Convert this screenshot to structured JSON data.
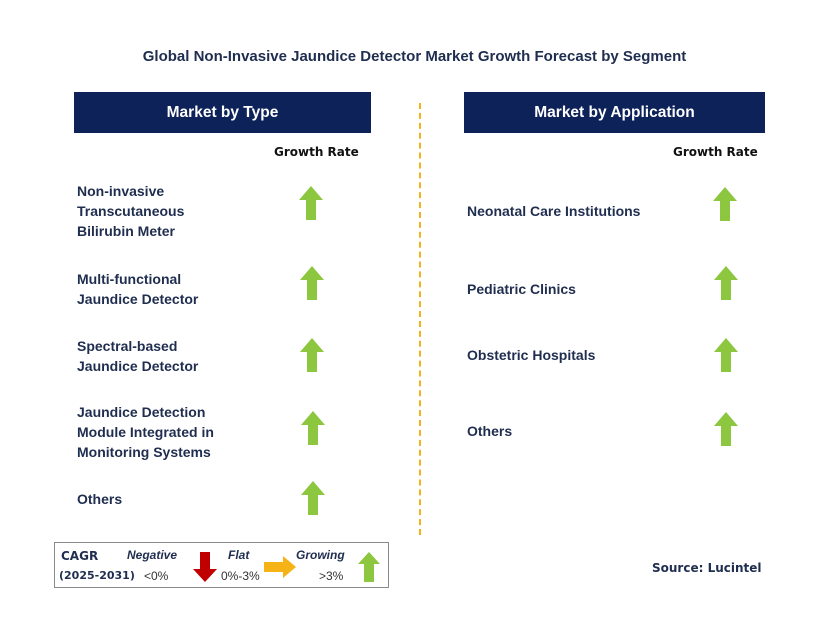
{
  "title": "Global Non-Invasive Jaundice Detector Market Growth Forecast by Segment",
  "left_panel": {
    "header": "Market by Type",
    "growth_label": "Growth Rate",
    "items": [
      {
        "lines": [
          "Non-invasive",
          "Transcutaneous",
          "Bilirubin Meter"
        ],
        "trend": "growing"
      },
      {
        "lines": [
          "Multi-functional",
          "Jaundice Detector"
        ],
        "trend": "growing"
      },
      {
        "lines": [
          "Spectral-based",
          "Jaundice Detector"
        ],
        "trend": "growing"
      },
      {
        "lines": [
          "Jaundice Detection",
          "Module Integrated in",
          "Monitoring Systems"
        ],
        "trend": "growing"
      },
      {
        "lines": [
          "Others"
        ],
        "trend": "growing"
      }
    ]
  },
  "right_panel": {
    "header": "Market by Application",
    "growth_label": "Growth Rate",
    "items": [
      {
        "lines": [
          "Neonatal Care Institutions"
        ],
        "trend": "growing"
      },
      {
        "lines": [
          "Pediatric Clinics"
        ],
        "trend": "growing"
      },
      {
        "lines": [
          "Obstetric Hospitals"
        ],
        "trend": "growing"
      },
      {
        "lines": [
          "Others"
        ],
        "trend": "growing"
      }
    ]
  },
  "legend": {
    "cagr": "CAGR",
    "period": "(2025-2031)",
    "negative": {
      "label": "Negative",
      "range": "<0%",
      "icon": "down-arrow-icon"
    },
    "flat": {
      "label": "Flat",
      "range": "0%-3%",
      "icon": "right-arrow-icon"
    },
    "growing": {
      "label": "Growing",
      "range": ">3%",
      "icon": "up-arrow-icon"
    }
  },
  "source": "Source: Lucintel",
  "colors": {
    "header_bg": "#0d2259",
    "growing": "#8dc63f",
    "negative": "#c00000",
    "flat": "#f5b316",
    "divider": "#f2b31c"
  }
}
